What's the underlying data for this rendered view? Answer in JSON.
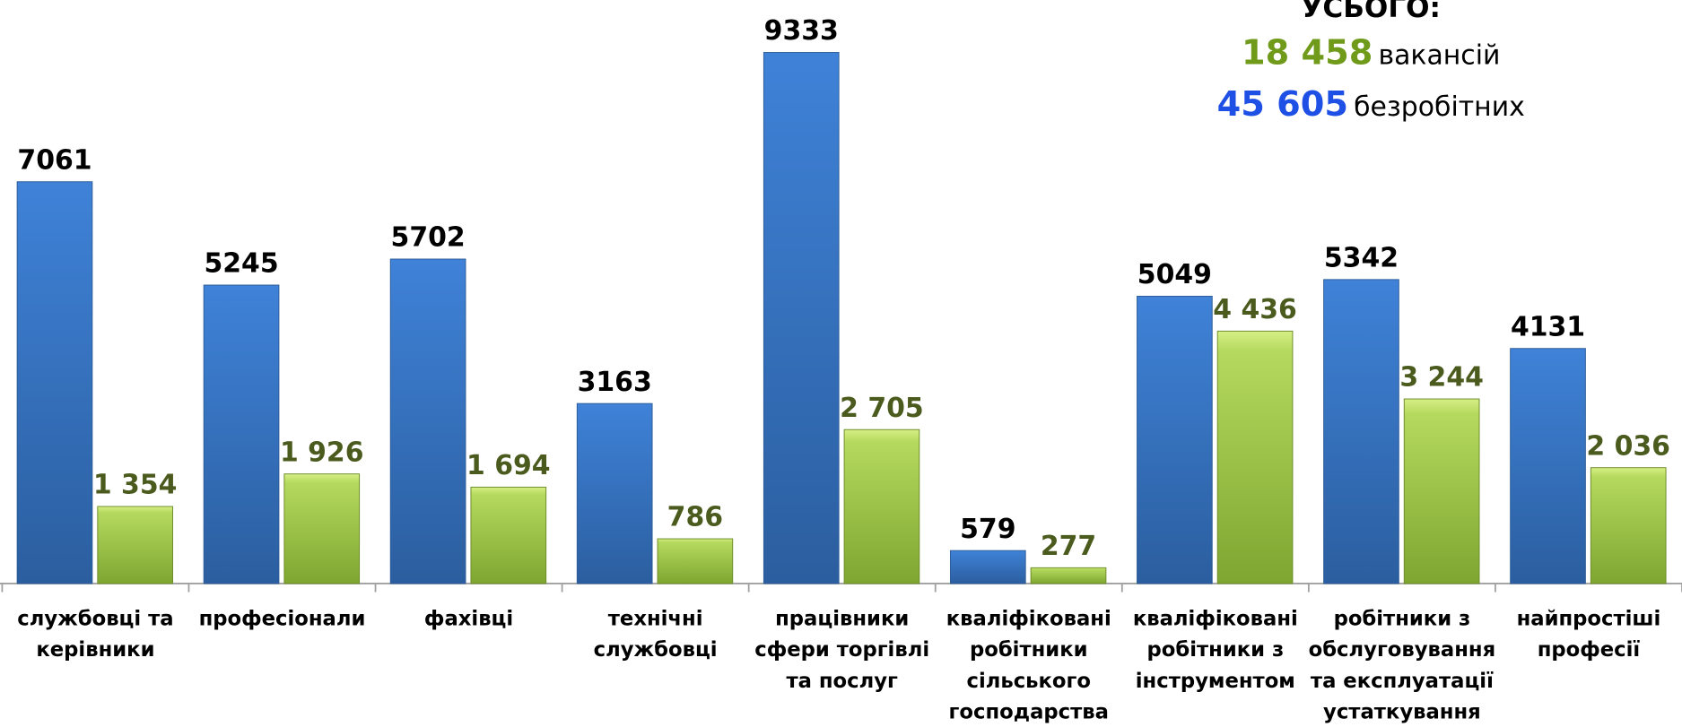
{
  "chart_data": {
    "type": "bar",
    "categories": [
      "службовці та\nкерівники",
      "професіонали",
      "фахівці",
      "технічні\nслужбовці",
      "працівники\nсфери торгівлі\nта послуг",
      "кваліфіковані\nробітники\nсільського\nгосподарства",
      "кваліфіковані\nробітники з\nінструментом",
      "робітники з\nобслуговування\nта експлуатації\nустаткування",
      "найпростіші\nпрофесії"
    ],
    "series": [
      {
        "name": "безробітних",
        "color": "#3b78c8",
        "total_label": "45 605",
        "values": [
          7061,
          5245,
          5702,
          3163,
          9333,
          579,
          5049,
          5342,
          4131
        ]
      },
      {
        "name": "вакансій",
        "color": "#9ac544",
        "total_label": "18 458",
        "values": [
          1354,
          1926,
          1694,
          786,
          2705,
          277,
          4436,
          3244,
          2036
        ],
        "value_labels": [
          "1 354",
          "1 926",
          "1 694",
          "786",
          "2 705",
          "277",
          "4 436",
          "3 244",
          "2 036"
        ]
      }
    ],
    "total_title": "УСЬОГО:"
  }
}
